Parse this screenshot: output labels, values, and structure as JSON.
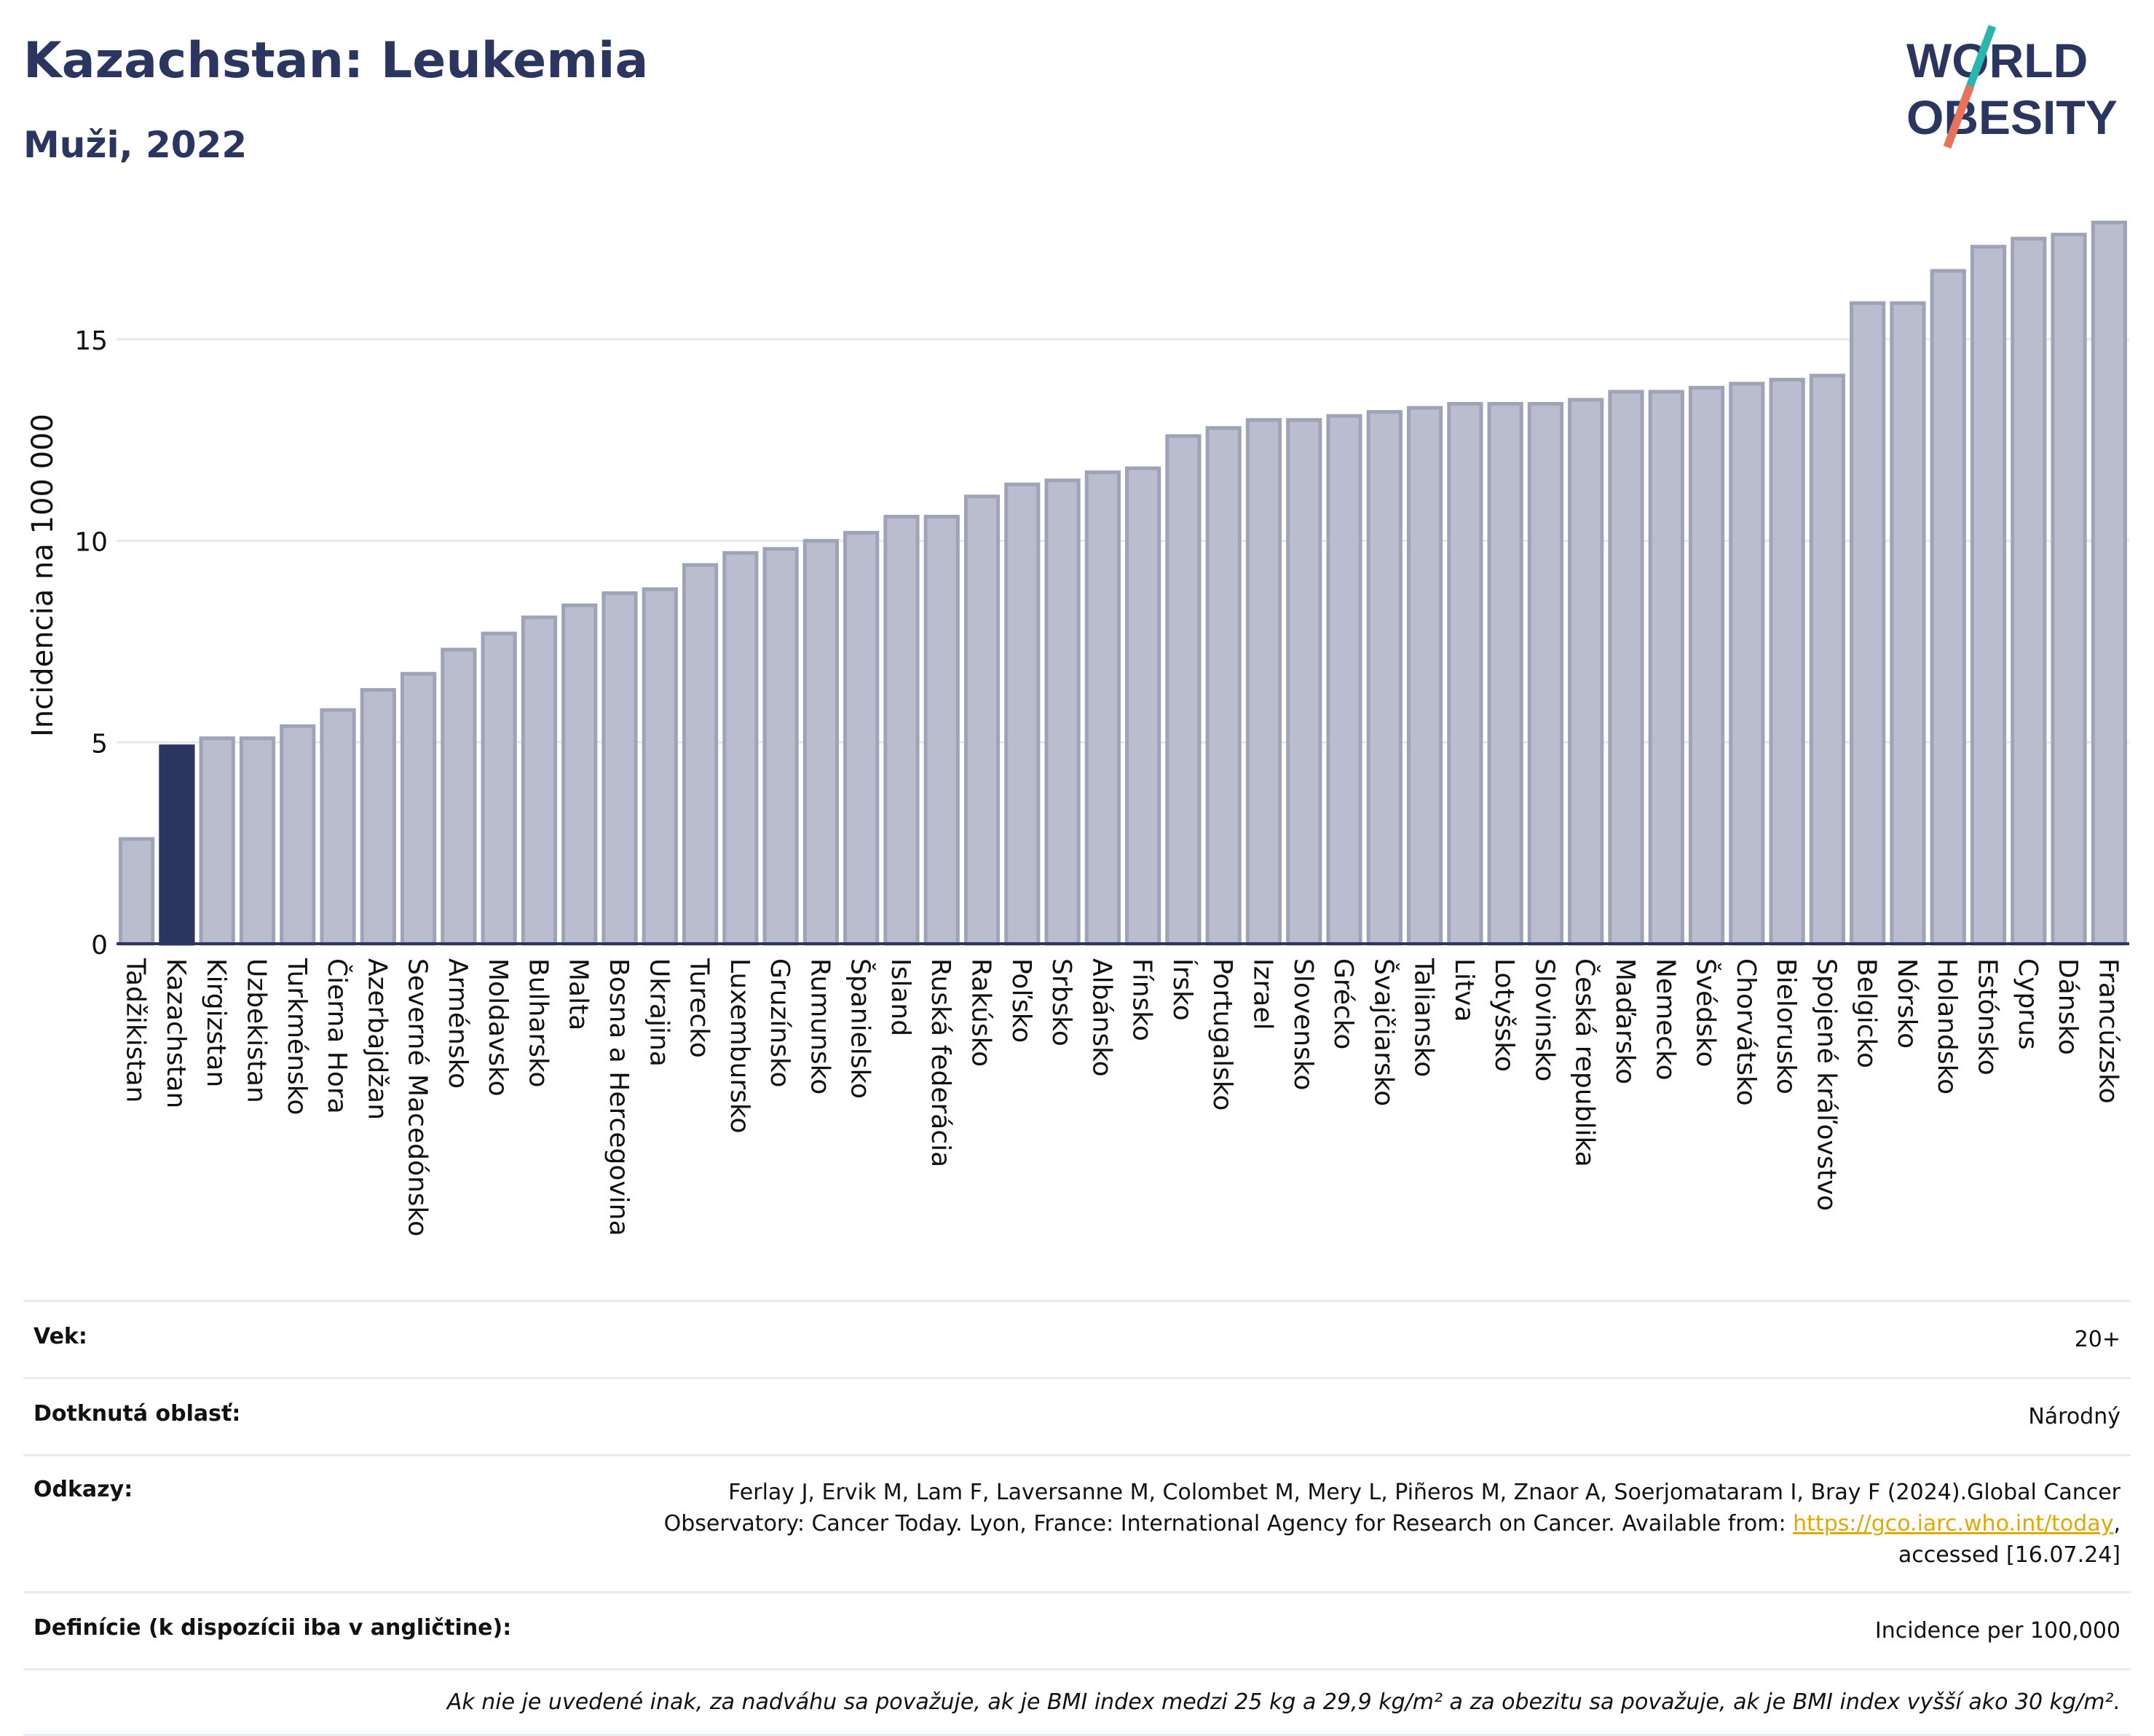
{
  "header": {
    "title": "Kazachstan: Leukemia",
    "subtitle": "Muži, 2022",
    "logo_line1": "WORLD",
    "logo_line2": "OBESITY"
  },
  "chart_data": {
    "type": "bar",
    "ylabel": "Incidencia na 100 000",
    "ylim": [
      0,
      18
    ],
    "yticks": [
      0,
      5,
      10,
      15
    ],
    "grid": true,
    "highlight_category": "Kazachstan",
    "colors": {
      "bar": "#b9bdcd",
      "bar_edge": "#9ea3b8",
      "highlight": "#2a3560",
      "axis": "#2a3560",
      "grid": "#e6e8ef"
    },
    "categories": [
      "Tadžikistan",
      "Kazachstan",
      "Kirgizstan",
      "Uzbekistan",
      "Turkménsko",
      "Čierna Hora",
      "Azerbajdžan",
      "Severné Macedónsko",
      "Arménsko",
      "Moldavsko",
      "Bulharsko",
      "Malta",
      "Bosna a Hercegovina",
      "Ukrajina",
      "Turecko",
      "Luxembursko",
      "Gruzínsko",
      "Rumunsko",
      "Španielsko",
      "Island",
      "Ruská federácia",
      "Rakúsko",
      "Poľsko",
      "Srbsko",
      "Albánsko",
      "Fínsko",
      "Írsko",
      "Portugalsko",
      "Izrael",
      "Slovensko",
      "Grécko",
      "Švajčiarsko",
      "Taliansko",
      "Litva",
      "Lotyšsko",
      "Slovinsko",
      "Česká republika",
      "Maďarsko",
      "Nemecko",
      "Švédsko",
      "Chorvátsko",
      "Bielorusko",
      "Spojené kráľovstvo",
      "Belgicko",
      "Nórsko",
      "Holandsko",
      "Estónsko",
      "Cyprus",
      "Dánsko",
      "Francúzsko"
    ],
    "values": [
      2.6,
      4.9,
      5.1,
      5.1,
      5.4,
      5.8,
      6.3,
      6.7,
      7.3,
      7.7,
      8.1,
      8.4,
      8.7,
      8.8,
      9.4,
      9.7,
      9.8,
      10.0,
      10.2,
      10.6,
      10.6,
      11.1,
      11.4,
      11.5,
      11.7,
      11.8,
      12.6,
      12.8,
      13.0,
      13.0,
      13.1,
      13.2,
      13.3,
      13.4,
      13.4,
      13.4,
      13.5,
      13.7,
      13.7,
      13.8,
      13.9,
      14.0,
      14.1,
      15.9,
      15.9,
      16.7,
      17.3,
      17.5,
      17.6,
      17.9
    ]
  },
  "meta": {
    "age_label": "Vek:",
    "age_value": "20+",
    "area_label": "Dotknutá oblasť:",
    "area_value": "Národný",
    "refs_label": "Odkazy:",
    "refs_text1": "Ferlay J, Ervik M, Lam F, Laversanne M, Colombet M, Mery L, Piñeros M, Znaor A, Soerjomataram I, Bray F (2024).Global Cancer",
    "refs_text2": "Observatory: Cancer Today. Lyon, France: International Agency for Research on Cancer. Available from: ",
    "refs_link": "https://gco.iarc.who.int/today",
    "refs_text3": "accessed [16.07.24]",
    "def_label": "Definície (k dispozícii iba v angličtine):",
    "def_value": "Incidence per 100,000",
    "note": "Ak nie je uvedené inak, za nadváhu sa považuje, ak je BMI index medzi 25 kg a 29,9 kg/m² a za obezitu sa považuje, ak je BMI index vyšší ako 30 kg/m²."
  }
}
